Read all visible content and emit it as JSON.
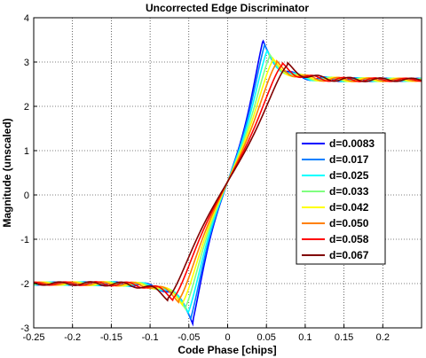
{
  "chart_data": {
    "type": "line",
    "title": "Uncorrected Edge Discriminator",
    "xlabel": "Code Phase [chips]",
    "ylabel": "Magnitude (unscaled)",
    "xlim": [
      -0.25,
      0.25
    ],
    "ylim": [
      -3,
      4
    ],
    "x_ticks": [
      -0.25,
      -0.2,
      -0.15,
      -0.1,
      -0.05,
      0,
      0.05,
      0.1,
      0.15,
      0.2
    ],
    "x_tick_labels": [
      "-0.25",
      "-0.2",
      "-0.15",
      "-0.1",
      "-0.05",
      "0",
      "0.05",
      "0.1",
      "0.15",
      "0.2"
    ],
    "y_ticks": [
      -3,
      -2,
      -1,
      0,
      1,
      2,
      3,
      4
    ],
    "y_tick_labels": [
      "-3",
      "-2",
      "-1",
      "0",
      "1",
      "2",
      "3",
      "4"
    ],
    "grid": true,
    "legend_position": "right",
    "curve_model": {
      "center_offset": 0.0,
      "center_value": 0.3,
      "plateau": 2.6,
      "ripple_amplitude": 0.06,
      "ripple_period": 0.04
    },
    "series": [
      {
        "name": "d=0.0083",
        "d": 0.0083,
        "color": "#0000ff",
        "peak_x": 0.045,
        "peak": 3.45
      },
      {
        "name": "d=0.017",
        "d": 0.017,
        "color": "#0080ff",
        "peak_x": 0.047,
        "peak": 3.35
      },
      {
        "name": "d=0.025",
        "d": 0.025,
        "color": "#00ffff",
        "peak_x": 0.05,
        "peak": 3.22
      },
      {
        "name": "d=0.033",
        "d": 0.033,
        "color": "#80ff80",
        "peak_x": 0.054,
        "peak": 3.12
      },
      {
        "name": "d=0.042",
        "d": 0.042,
        "color": "#ffff00",
        "peak_x": 0.058,
        "peak": 3.03
      },
      {
        "name": "d=0.050",
        "d": 0.05,
        "color": "#ff8000",
        "peak_x": 0.063,
        "peak": 2.97
      },
      {
        "name": "d=0.058",
        "d": 0.058,
        "color": "#ff0000",
        "peak_x": 0.07,
        "peak": 2.93
      },
      {
        "name": "d=0.067",
        "d": 0.067,
        "color": "#800000",
        "peak_x": 0.077,
        "peak": 2.93
      }
    ]
  }
}
